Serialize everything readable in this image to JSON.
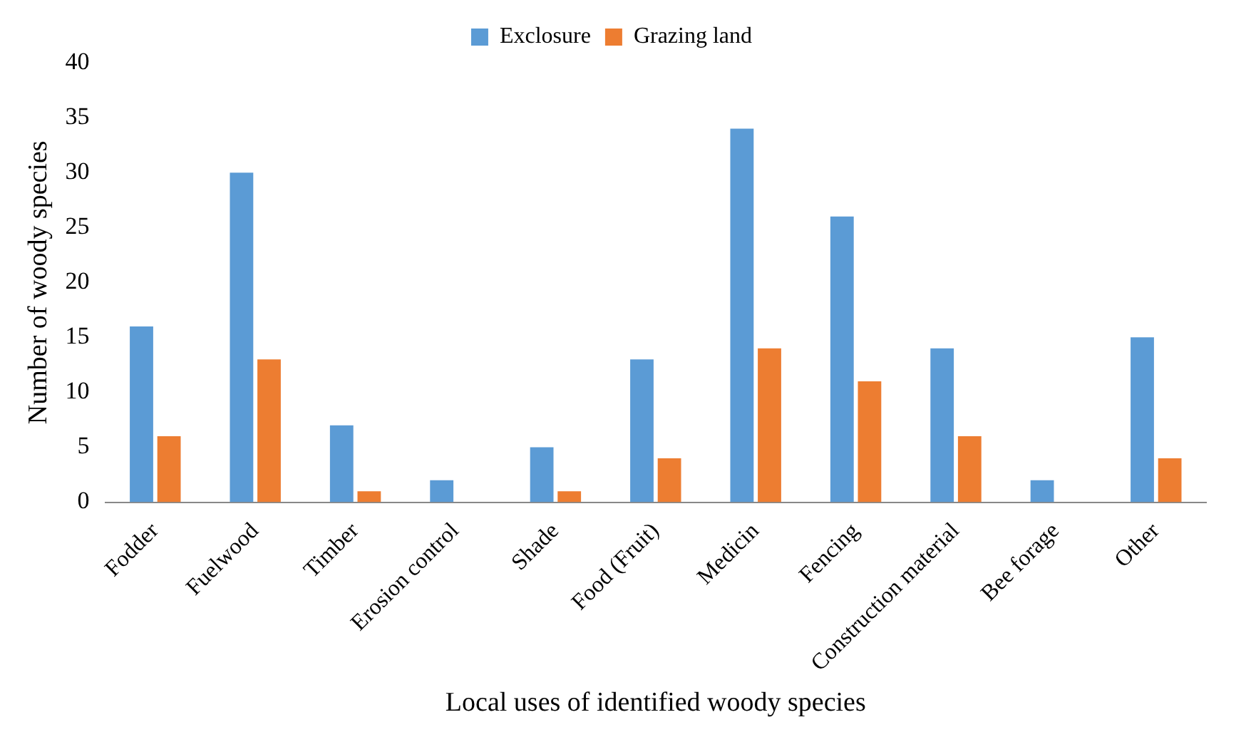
{
  "chart_data": {
    "type": "bar",
    "xlabel": "Local uses of identified woody species",
    "ylabel": "Number of woody species",
    "categories": [
      "Fodder",
      "Fuelwood",
      "Timber",
      "Erosion control",
      "Shade",
      "Food (Fruit)",
      "Medicin",
      "Fencing",
      "Construction material",
      "Bee forage",
      "Other"
    ],
    "series": [
      {
        "name": "Exclosure",
        "color": "#5b9bd5",
        "values": [
          16,
          30,
          7,
          2,
          5,
          13,
          34,
          26,
          14,
          2,
          15
        ]
      },
      {
        "name": "Grazing land",
        "color": "#ed7d31",
        "values": [
          6,
          13,
          1,
          0,
          1,
          4,
          14,
          11,
          6,
          0,
          4
        ]
      }
    ],
    "ylim": [
      0,
      40
    ],
    "yticks": [
      0,
      5,
      10,
      15,
      20,
      25,
      30,
      35,
      40
    ],
    "grid": false,
    "legend": "top"
  }
}
